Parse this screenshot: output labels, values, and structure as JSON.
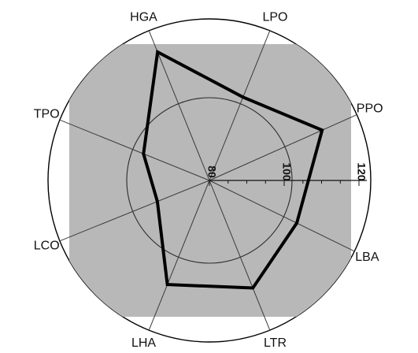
{
  "chart_data": {
    "type": "radar",
    "title": "",
    "axes": [
      "HGA",
      "LPO",
      "PPO",
      "LBA",
      "LTR",
      "LHA",
      "LCO",
      "TPO"
    ],
    "series": [
      {
        "values": [
          117,
          104,
          113,
          106,
          111,
          110,
          95,
          99
        ]
      }
    ],
    "radial_ticks": [
      80,
      100,
      120
    ],
    "rlim": [
      80,
      120
    ],
    "shaded_band": [
      80,
      120
    ],
    "grid": true,
    "legend": "none",
    "colors": {
      "series_line": "#000000",
      "shade_fill": "#b8b8b8",
      "grid_line": "#3a3a3a",
      "outer_ring": "#000000"
    }
  }
}
